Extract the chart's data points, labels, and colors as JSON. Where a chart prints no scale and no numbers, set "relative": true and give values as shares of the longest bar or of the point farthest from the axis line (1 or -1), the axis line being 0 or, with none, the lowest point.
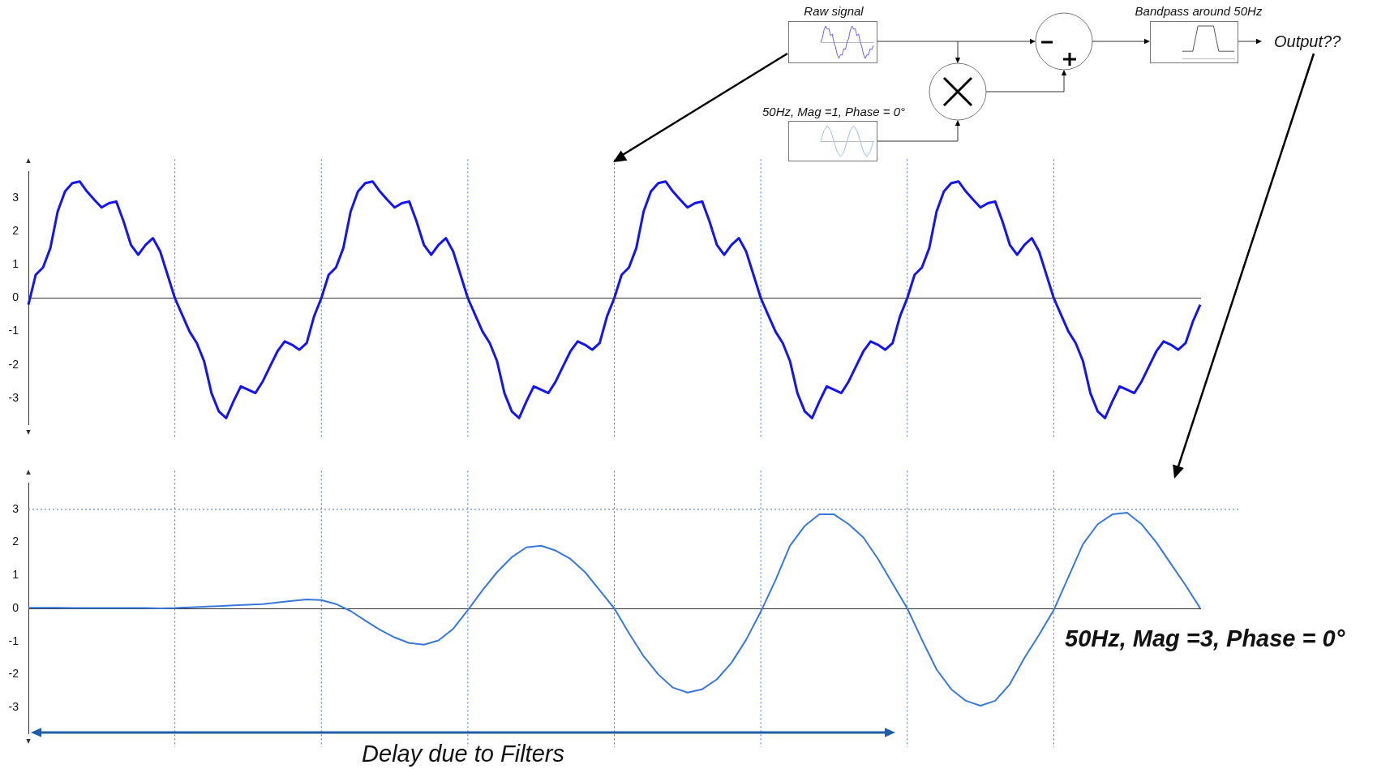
{
  "chart_data": [
    {
      "type": "other",
      "annotations": [
        "Raw signal",
        "50Hz, Mag =1, Phase = 0°",
        "Bandpass around 50Hz",
        "Output??"
      ]
    },
    {
      "type": "line",
      "relative": true,
      "categories": [
        null,
        null,
        null,
        null,
        null,
        null,
        null,
        null,
        null,
        null,
        null,
        null,
        null,
        null,
        null,
        null,
        null,
        null,
        null,
        null,
        null,
        null,
        null,
        null,
        null,
        null,
        null,
        null,
        null,
        null,
        null,
        null,
        null
      ],
      "series": [
        {
          "color": "#6a5cff",
          "values": [
            0,
            0.25,
            0.75,
            1,
            0.8,
            0.83,
            0.4,
            0.5,
            0,
            -0.3,
            -0.75,
            -1,
            -0.78,
            -0.8,
            -0.4,
            -0.45,
            0,
            0.25,
            0.75,
            1,
            0.8,
            0.83,
            0.4,
            0.5,
            0,
            -0.3,
            -0.75,
            -1,
            -0.78,
            -0.8,
            -0.4,
            -0.45,
            -0.2
          ]
        }
      ]
    },
    {
      "type": "line",
      "relative": true,
      "categories": [
        null,
        null,
        null,
        null,
        null,
        null,
        null,
        null,
        null,
        null,
        null
      ],
      "series": [
        {
          "color": "#555555",
          "values": [
            0.22,
            0.22,
            0.22,
            1,
            1,
            1,
            1,
            0.22,
            0.22,
            0.22,
            0.22
          ]
        }
      ]
    },
    {
      "type": "line",
      "relative": true,
      "categories": [
        null,
        null,
        null,
        null,
        null,
        null,
        null,
        null,
        null,
        null,
        null,
        null,
        null,
        null,
        null,
        null,
        null
      ],
      "series": [
        {
          "color": "#9fc0ee",
          "values": [
            0,
            0.7,
            1,
            0.7,
            0,
            -0.7,
            -1,
            -0.7,
            0,
            0.7,
            1,
            0.7,
            0,
            -0.7,
            -1,
            -0.7,
            0
          ]
        }
      ]
    },
    {
      "type": "line",
      "tick_labels": "y",
      "ylim": [
        -3.8,
        3.8
      ],
      "yticks": [
        -3,
        -2,
        -1,
        0,
        1,
        2,
        3
      ],
      "grid": "x",
      "categories": [
        null,
        null,
        null,
        null,
        null,
        null,
        null,
        null,
        null,
        null,
        null,
        null,
        null,
        null,
        null,
        null,
        null,
        null,
        null,
        null,
        null,
        null,
        null,
        null,
        null,
        null,
        null,
        null,
        null,
        null,
        null,
        null,
        null,
        null,
        null,
        null,
        null,
        null,
        null,
        null,
        null,
        null,
        null,
        null,
        null,
        null,
        null,
        null,
        null,
        null,
        null,
        null,
        null,
        null,
        null,
        null,
        null,
        null,
        null,
        null,
        null,
        null,
        null,
        null,
        null,
        null,
        null,
        null,
        null,
        null,
        null,
        null,
        null,
        null,
        null,
        null,
        null,
        null,
        null,
        null,
        null,
        null,
        null,
        null,
        null,
        null,
        null,
        null,
        null,
        null,
        null,
        null,
        null,
        null,
        null,
        null,
        null,
        null,
        null,
        null,
        null,
        null,
        null,
        null,
        null,
        null,
        null,
        null,
        null,
        null,
        null,
        null,
        null,
        null,
        null,
        null,
        null,
        null,
        null,
        null,
        null,
        null,
        null,
        null,
        null,
        null,
        null,
        null,
        null,
        null,
        null,
        null,
        null,
        null,
        null,
        null,
        null,
        null,
        null,
        null,
        null,
        null,
        null,
        null,
        null,
        null,
        null,
        null,
        null,
        null,
        null,
        null,
        null,
        null,
        null,
        null,
        null,
        null,
        null,
        null,
        null
      ],
      "series": [
        {
          "color": "#1414f0",
          "values": [
            -0.2,
            0.7,
            0.92,
            1.5,
            2.6,
            3.2,
            3.45,
            3.5,
            3.2,
            2.95,
            2.72,
            2.85,
            2.9,
            2.3,
            1.6,
            1.3,
            1.6,
            1.8,
            1.4,
            0.7,
            0,
            -0.5,
            -1,
            -1.35,
            -1.9,
            -2.85,
            -3.4,
            -3.6,
            -3.1,
            -2.65,
            -2.75,
            -2.85,
            -2.5,
            -2.05,
            -1.6,
            -1.3,
            -1.4,
            -1.55,
            -1.35,
            -0.55,
            0,
            0.7,
            0.92,
            1.5,
            2.6,
            3.2,
            3.45,
            3.5,
            3.2,
            2.95,
            2.72,
            2.85,
            2.9,
            2.3,
            1.6,
            1.3,
            1.6,
            1.8,
            1.4,
            0.7,
            0,
            -0.5,
            -1,
            -1.35,
            -1.9,
            -2.85,
            -3.4,
            -3.6,
            -3.1,
            -2.65,
            -2.75,
            -2.85,
            -2.5,
            -2.05,
            -1.6,
            -1.3,
            -1.4,
            -1.55,
            -1.35,
            -0.55,
            0,
            0.7,
            0.92,
            1.5,
            2.6,
            3.2,
            3.45,
            3.5,
            3.2,
            2.95,
            2.72,
            2.85,
            2.9,
            2.3,
            1.6,
            1.3,
            1.6,
            1.8,
            1.4,
            0.7,
            0,
            -0.5,
            -1,
            -1.35,
            -1.9,
            -2.85,
            -3.4,
            -3.6,
            -3.1,
            -2.65,
            -2.75,
            -2.85,
            -2.5,
            -2.05,
            -1.6,
            -1.3,
            -1.4,
            -1.55,
            -1.35,
            -0.55,
            0,
            0.7,
            0.92,
            1.5,
            2.6,
            3.2,
            3.45,
            3.5,
            3.2,
            2.95,
            2.72,
            2.85,
            2.9,
            2.3,
            1.6,
            1.3,
            1.6,
            1.8,
            1.4,
            0.7,
            0,
            -0.5,
            -1,
            -1.35,
            -1.9,
            -2.85,
            -3.4,
            -3.6,
            -3.1,
            -2.65,
            -2.75,
            -2.85,
            -2.5,
            -2.05,
            -1.6,
            -1.3,
            -1.4,
            -1.55,
            -1.35,
            -0.7,
            -0.2
          ]
        }
      ]
    },
    {
      "type": "line",
      "tick_labels": "y",
      "ylim": [
        -3.8,
        3.8
      ],
      "yticks": [
        -3,
        -2,
        -1,
        0,
        1,
        2,
        3
      ],
      "grid": "x",
      "ref_lines": [
        {
          "axis": "y",
          "value": 3,
          "color": "#3a6fc4",
          "line_style": "dotted"
        }
      ],
      "annotations": [
        "Delay due to Filters",
        "50Hz, Mag =3, Phase = 0°"
      ],
      "categories": [
        null,
        null,
        null,
        null,
        null,
        null,
        null,
        null,
        null,
        null,
        null,
        null,
        null,
        null,
        null,
        null,
        null,
        null,
        null,
        null,
        null,
        null,
        null,
        null,
        null,
        null,
        null,
        null,
        null,
        null,
        null,
        null,
        null,
        null,
        null,
        null,
        null,
        null,
        null,
        null,
        null,
        null,
        null,
        null,
        null,
        null,
        null,
        null,
        null,
        null,
        null,
        null,
        null,
        null,
        null,
        null,
        null,
        null,
        null,
        null,
        null,
        null,
        null,
        null,
        null,
        null,
        null,
        null,
        null,
        null,
        null,
        null,
        null,
        null,
        null,
        null,
        null,
        null,
        null,
        null,
        null
      ],
      "series": [
        {
          "color": "#3a78d8",
          "values": [
            0.02,
            0.02,
            0.02,
            0.01,
            0.01,
            0.01,
            0.01,
            0.01,
            0.01,
            0,
            0.01,
            0.03,
            0.05,
            0.07,
            0.09,
            0.11,
            0.13,
            0.18,
            0.23,
            0.27,
            0.25,
            0.13,
            -0.08,
            -0.37,
            -0.65,
            -0.88,
            -1.05,
            -1.1,
            -0.97,
            -0.62,
            -0.05,
            0.55,
            1.1,
            1.55,
            1.85,
            1.9,
            1.75,
            1.5,
            1.1,
            0.55,
            0,
            -0.75,
            -1.45,
            -2,
            -2.4,
            -2.55,
            -2.45,
            -2.15,
            -1.65,
            -0.95,
            -0.1,
            0.85,
            1.9,
            2.5,
            2.85,
            2.85,
            2.55,
            2.15,
            1.5,
            0.75,
            0,
            -0.95,
            -1.85,
            -2.45,
            -2.8,
            -2.95,
            -2.8,
            -2.3,
            -1.5,
            -0.8,
            -0.05,
            0.95,
            1.95,
            2.55,
            2.85,
            2.9,
            2.55,
            2,
            1.35,
            0.7,
            0
          ]
        }
      ]
    }
  ]
}
